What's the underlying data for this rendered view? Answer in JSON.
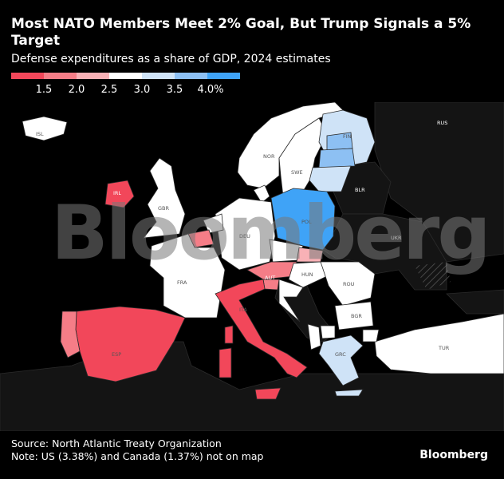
{
  "header": {
    "title": "Most NATO Members Meet 2% Goal, But Trump Signals a 5% Target",
    "subtitle": "Defense expenditures as a share of GDP, 2024 estimates"
  },
  "legend": {
    "colors": [
      "#f2475a",
      "#f57d87",
      "#f8b1b6",
      "#ffffff",
      "#cfe3f7",
      "#8dc0f3",
      "#3fa3f7"
    ],
    "labels": [
      "1.5",
      "2.0",
      "2.5",
      "3.0",
      "3.5",
      "4.0%"
    ]
  },
  "map": {
    "colors": {
      "background": "#000000",
      "land_non_member": "#141414",
      "border": "#2a2a2a",
      "lt_1_5": "#f2475a",
      "1_5_to_2_0": "#f57d87",
      "2_0_to_2_5": "#f8b1b6",
      "2_5_to_3_0": "#ffffff",
      "3_0_to_3_5": "#cfe3f7",
      "3_5_to_4_0": "#8dc0f3",
      "gt_4_0": "#3fa3f7"
    },
    "countries": {
      "ISL": "ISL",
      "IRL": "IRL",
      "BLR": "BLR",
      "UKR": "UKR",
      "RUS": "RUS",
      "POL": "POL",
      "AUT": "AUT",
      "ITA": "ITA",
      "ESP": "ESP",
      "FRA": "FRA",
      "DEU": "DEU",
      "GBR": "GBR",
      "NOR": "NOR",
      "SWE": "SWE",
      "FIN": "FIN",
      "ROU": "ROU",
      "BGR": "BGR",
      "GRC": "GRC",
      "TUR": "TUR",
      "HUN": "HUN"
    }
  },
  "watermark": "Bloomberg",
  "footer": {
    "source": "Source: North Atlantic Treaty Organization",
    "note": "Note: US (3.38%) and Canada (1.37%) not on map",
    "brand": "Bloomberg"
  }
}
